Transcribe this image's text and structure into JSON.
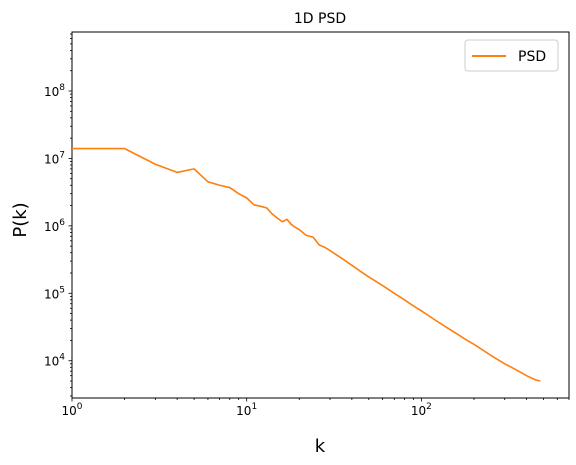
{
  "chart_data": {
    "type": "line",
    "title": "1D PSD",
    "xlabel": "k",
    "ylabel": "P(k)",
    "xscale": "log",
    "yscale": "log",
    "xlim": [
      1,
      700
    ],
    "ylim": [
      2800,
      750000000
    ],
    "grid": false,
    "legend_position": "top-right",
    "x_ticks": [
      {
        "value": 1,
        "mantissa": "10",
        "exp": "0"
      },
      {
        "value": 10,
        "mantissa": "10",
        "exp": "1"
      },
      {
        "value": 100,
        "mantissa": "10",
        "exp": "2"
      }
    ],
    "y_ticks": [
      {
        "value": 10000,
        "mantissa": "10",
        "exp": "4"
      },
      {
        "value": 100000,
        "mantissa": "10",
        "exp": "5"
      },
      {
        "value": 1000000,
        "mantissa": "10",
        "exp": "6"
      },
      {
        "value": 10000000,
        "mantissa": "10",
        "exp": "7"
      },
      {
        "value": 100000000,
        "mantissa": "10",
        "exp": "8"
      }
    ],
    "series": [
      {
        "name": "PSD",
        "color": "#ff7f0e",
        "x": [
          1,
          2,
          3,
          4,
          5,
          6,
          7,
          8,
          9,
          10,
          11,
          12,
          13,
          14,
          15,
          16,
          17,
          18,
          19,
          20,
          22,
          24,
          26,
          28,
          30,
          35,
          40,
          45,
          50,
          60,
          70,
          80,
          90,
          100,
          120,
          140,
          160,
          180,
          200,
          250,
          300,
          350,
          400,
          450,
          480
        ],
        "y": [
          14000000,
          14000000,
          8200000,
          6200000,
          7000000,
          4500000,
          4000000,
          3700000,
          3000000,
          2600000,
          2050000,
          1950000,
          1850000,
          1500000,
          1300000,
          1150000,
          1250000,
          1050000,
          950000,
          880000,
          720000,
          680000,
          520000,
          480000,
          430000,
          330000,
          260000,
          210000,
          175000,
          130000,
          100000,
          80000,
          65000,
          55000,
          40000,
          31000,
          25000,
          20500,
          17500,
          12000,
          9000,
          7300,
          6000,
          5200,
          5000
        ]
      }
    ]
  }
}
